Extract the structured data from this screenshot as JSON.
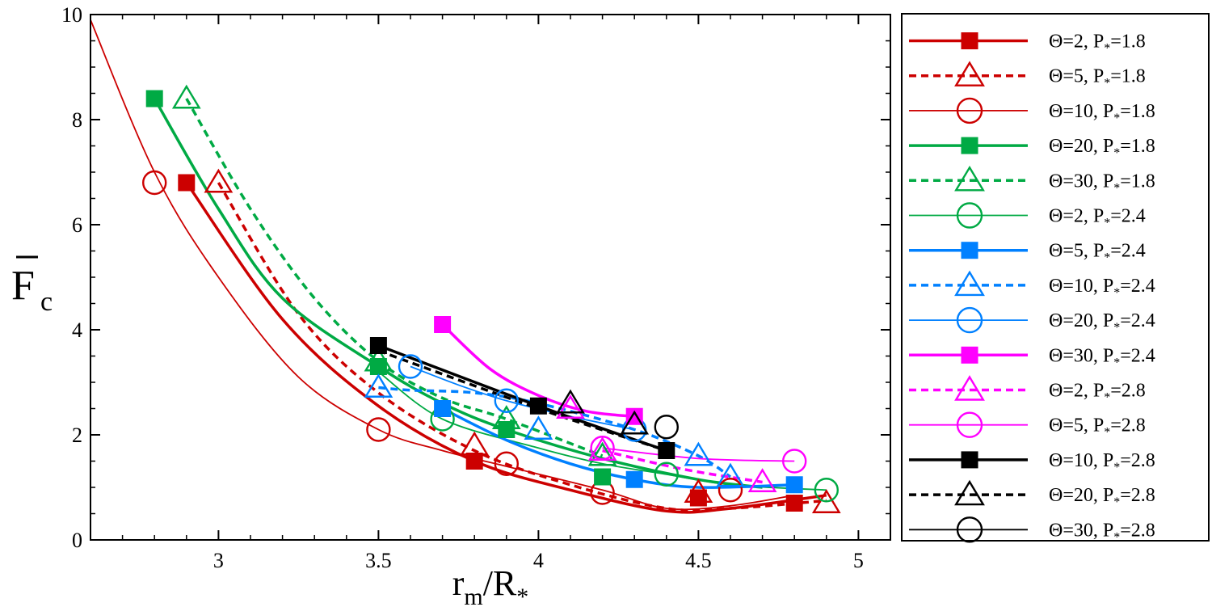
{
  "chart_data": {
    "type": "scatter",
    "xlim": [
      2.6,
      5.1
    ],
    "ylim": [
      0,
      10
    ],
    "x_ticks": [
      3,
      3.5,
      4,
      4.5,
      5
    ],
    "x_tick_labels": [
      "3",
      "3.5",
      "4",
      "4.5",
      "5"
    ],
    "y_ticks": [
      0,
      2,
      4,
      6,
      8,
      10
    ],
    "y_tick_labels": [
      "0",
      "2",
      "4",
      "6",
      "8",
      "10"
    ],
    "xlabel": {
      "base": "r",
      "sub1": "m",
      "slash": "/R",
      "sub2": "*"
    },
    "ylabel": {
      "base": "F",
      "sub": "c"
    },
    "grid": false,
    "legend_position": "right",
    "series": [
      {
        "theta": "Θ=2, P",
        "p_sub": "*",
        "p_value": "=1.8",
        "color": "#cc0000",
        "marker": "square",
        "dash": "solid",
        "width": "thick",
        "points": [
          [
            2.9,
            6.8
          ],
          [
            3.8,
            1.5
          ],
          [
            4.5,
            0.8
          ],
          [
            4.8,
            0.7
          ]
        ],
        "curve": [
          [
            2.9,
            6.8
          ],
          [
            3.2,
            4.2
          ],
          [
            3.5,
            2.55
          ],
          [
            3.8,
            1.5
          ],
          [
            4.1,
            0.95
          ],
          [
            4.4,
            0.55
          ],
          [
            4.6,
            0.6
          ],
          [
            4.9,
            0.85
          ]
        ]
      },
      {
        "theta": "Θ=5, P",
        "p_sub": "*",
        "p_value": "=1.8",
        "color": "#cc0000",
        "marker": "triangle",
        "dash": "dashed",
        "width": "thick",
        "points": [
          [
            3.0,
            6.8
          ],
          [
            3.8,
            1.8
          ],
          [
            4.5,
            0.9
          ],
          [
            4.9,
            0.7
          ]
        ],
        "curve": [
          [
            3.0,
            6.8
          ],
          [
            3.25,
            4.3
          ],
          [
            3.5,
            2.8
          ],
          [
            3.8,
            1.7
          ],
          [
            4.1,
            1.05
          ],
          [
            4.4,
            0.6
          ],
          [
            4.6,
            0.6
          ],
          [
            4.9,
            0.75
          ]
        ]
      },
      {
        "theta": "Θ=10, P",
        "p_sub": "*",
        "p_value": "=1.8",
        "color": "#cc0000",
        "marker": "circle",
        "dash": "solid",
        "width": "thin",
        "points": [
          [
            2.8,
            6.8
          ],
          [
            3.5,
            2.1
          ],
          [
            3.9,
            1.45
          ],
          [
            4.2,
            0.9
          ],
          [
            4.6,
            0.95
          ]
        ],
        "curve": [
          [
            2.6,
            9.9
          ],
          [
            2.8,
            7.0
          ],
          [
            3.0,
            5.0
          ],
          [
            3.25,
            3.1
          ],
          [
            3.5,
            2.1
          ],
          [
            3.7,
            1.7
          ],
          [
            3.9,
            1.4
          ],
          [
            4.2,
            0.95
          ],
          [
            4.4,
            0.6
          ],
          [
            4.6,
            0.65
          ],
          [
            4.8,
            0.85
          ]
        ]
      },
      {
        "theta": "Θ=20, P",
        "p_sub": "*",
        "p_value": "=1.8",
        "color": "#00aa44",
        "marker": "square",
        "dash": "solid",
        "width": "thick",
        "points": [
          [
            2.8,
            8.4
          ],
          [
            3.5,
            3.3
          ],
          [
            3.9,
            2.1
          ],
          [
            4.2,
            1.2
          ]
        ],
        "curve": [
          [
            2.8,
            8.4
          ],
          [
            3.0,
            6.3
          ],
          [
            3.2,
            4.6
          ],
          [
            3.5,
            3.3
          ],
          [
            3.7,
            2.6
          ],
          [
            3.9,
            2.1
          ],
          [
            4.2,
            1.55
          ],
          [
            4.5,
            1.15
          ],
          [
            4.7,
            1.0
          ]
        ]
      },
      {
        "theta": "Θ=30, P",
        "p_sub": "*",
        "p_value": "=1.8",
        "color": "#00aa44",
        "marker": "triangle",
        "dash": "dashed",
        "width": "thick",
        "points": [
          [
            2.9,
            8.4
          ],
          [
            3.5,
            3.4
          ],
          [
            3.9,
            2.3
          ],
          [
            4.2,
            1.6
          ]
        ],
        "curve": [
          [
            2.9,
            8.4
          ],
          [
            3.1,
            6.3
          ],
          [
            3.3,
            4.6
          ],
          [
            3.5,
            3.4
          ],
          [
            3.7,
            2.7
          ],
          [
            3.9,
            2.3
          ],
          [
            4.2,
            1.6
          ]
        ]
      },
      {
        "theta": "Θ=2, P",
        "p_sub": "*",
        "p_value": "=2.4",
        "color": "#00aa44",
        "marker": "circle",
        "dash": "solid",
        "width": "thin",
        "points": [
          [
            3.7,
            2.3
          ],
          [
            4.4,
            1.25
          ],
          [
            4.9,
            0.95
          ]
        ],
        "curve": [
          [
            3.5,
            3.2
          ],
          [
            3.7,
            2.3
          ],
          [
            4.0,
            1.75
          ],
          [
            4.2,
            1.45
          ],
          [
            4.4,
            1.25
          ],
          [
            4.6,
            1.05
          ],
          [
            4.9,
            0.95
          ]
        ]
      },
      {
        "theta": "Θ=5, P",
        "p_sub": "*",
        "p_value": "=2.4",
        "color": "#0080ff",
        "marker": "square",
        "dash": "solid",
        "width": "thick",
        "points": [
          [
            3.7,
            2.5
          ],
          [
            4.3,
            1.15
          ],
          [
            4.8,
            1.05
          ]
        ],
        "curve": [
          [
            3.7,
            2.5
          ],
          [
            3.9,
            1.9
          ],
          [
            4.1,
            1.45
          ],
          [
            4.3,
            1.15
          ],
          [
            4.5,
            1.0
          ],
          [
            4.8,
            1.05
          ]
        ]
      },
      {
        "theta": "Θ=10, P",
        "p_sub": "*",
        "p_value": "=2.4",
        "color": "#0080ff",
        "marker": "triangle",
        "dash": "dashed",
        "width": "thick",
        "points": [
          [
            3.5,
            2.9
          ],
          [
            4.0,
            2.1
          ],
          [
            4.5,
            1.6
          ],
          [
            4.6,
            1.2
          ]
        ],
        "curve": [
          [
            3.5,
            2.9
          ],
          [
            3.6,
            2.85
          ],
          [
            3.8,
            2.8
          ],
          [
            4.0,
            2.6
          ],
          [
            4.3,
            2.1
          ],
          [
            4.5,
            1.6
          ],
          [
            4.6,
            1.2
          ]
        ]
      },
      {
        "theta": "Θ=20, P",
        "p_sub": "*",
        "p_value": "=2.4",
        "color": "#0080ff",
        "marker": "circle",
        "dash": "solid",
        "width": "thin",
        "points": [
          [
            3.6,
            3.3
          ],
          [
            3.9,
            2.65
          ],
          [
            4.3,
            2.1
          ]
        ],
        "curve": [
          [
            3.6,
            3.3
          ],
          [
            3.75,
            2.95
          ],
          [
            3.9,
            2.65
          ],
          [
            4.1,
            2.35
          ],
          [
            4.3,
            2.1
          ]
        ]
      },
      {
        "theta": "Θ=30, P",
        "p_sub": "*",
        "p_value": "=2.4",
        "color": "#ff00ff",
        "marker": "square",
        "dash": "solid",
        "width": "thick",
        "points": [
          [
            3.7,
            4.1
          ],
          [
            4.3,
            2.35
          ]
        ],
        "curve": [
          [
            3.7,
            4.1
          ],
          [
            3.85,
            3.25
          ],
          [
            4.0,
            2.75
          ],
          [
            4.15,
            2.45
          ],
          [
            4.3,
            2.35
          ]
        ]
      },
      {
        "theta": "Θ=2, P",
        "p_sub": "*",
        "p_value": "=2.8",
        "color": "#ff00ff",
        "marker": "triangle",
        "dash": "dashed",
        "width": "thick",
        "points": [
          [
            4.1,
            2.5
          ],
          [
            4.2,
            1.7
          ],
          [
            4.7,
            1.1
          ]
        ],
        "curve": [
          [
            4.2,
            1.7
          ],
          [
            4.45,
            1.35
          ],
          [
            4.7,
            1.1
          ]
        ]
      },
      {
        "theta": "Θ=5, P",
        "p_sub": "*",
        "p_value": "=2.8",
        "color": "#ff00ff",
        "marker": "circle",
        "dash": "solid",
        "width": "thin",
        "points": [
          [
            4.2,
            1.75
          ],
          [
            4.8,
            1.5
          ]
        ],
        "curve": [
          [
            4.2,
            1.75
          ],
          [
            4.5,
            1.55
          ],
          [
            4.8,
            1.5
          ]
        ]
      },
      {
        "theta": "Θ=10, P",
        "p_sub": "*",
        "p_value": "=2.8",
        "color": "#000000",
        "marker": "square",
        "dash": "solid",
        "width": "thick",
        "points": [
          [
            3.5,
            3.7
          ],
          [
            4.0,
            2.55
          ],
          [
            4.4,
            1.7
          ]
        ],
        "curve": [
          [
            3.5,
            3.7
          ],
          [
            4.0,
            2.55
          ],
          [
            4.4,
            1.7
          ]
        ]
      },
      {
        "theta": "Θ=20, P",
        "p_sub": "*",
        "p_value": "=2.8",
        "color": "#000000",
        "marker": "triangle",
        "dash": "dashed",
        "width": "thick",
        "points": [
          [
            4.1,
            2.6
          ],
          [
            4.3,
            2.2
          ]
        ],
        "curve": [
          [
            3.5,
            3.6
          ],
          [
            4.0,
            2.5
          ],
          [
            4.4,
            1.7
          ]
        ]
      },
      {
        "theta": "Θ=30, P",
        "p_sub": "*",
        "p_value": "=2.8",
        "color": "#000000",
        "marker": "circle",
        "dash": "solid",
        "width": "thin",
        "points": [
          [
            4.4,
            2.15
          ]
        ],
        "curve": []
      }
    ]
  }
}
